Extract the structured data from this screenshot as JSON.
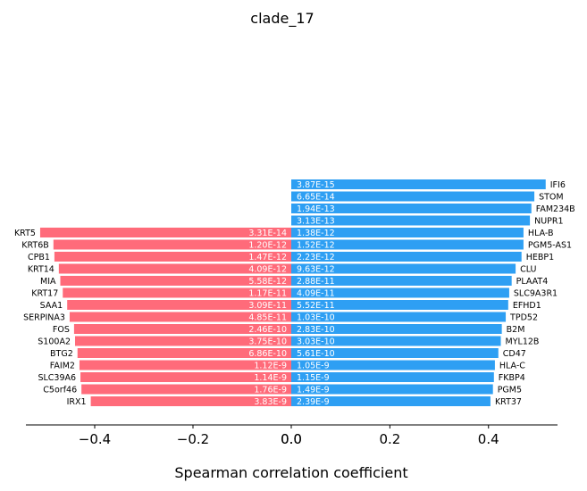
{
  "chart_data": {
    "type": "bar",
    "orientation": "horizontal",
    "title": "clade_17",
    "xlabel": "Spearman correlation coefficient",
    "ylabel": "",
    "grid": false,
    "colors": {
      "negative": "#FF6B7A",
      "positive": "#2E9FF3"
    },
    "panels": [
      {
        "side": "negative",
        "xlim": [
          -0.54,
          0.0
        ],
        "ticks": [
          -0.4,
          -0.2,
          0.0
        ],
        "tick_labels": [
          "−0.4",
          "−0.2",
          "0.0"
        ],
        "bars": [
          {
            "gene": "KRT5",
            "value": -0.511,
            "pvalue": "3.31E-14",
            "row": 4
          },
          {
            "gene": "KRT6B",
            "value": -0.484,
            "pvalue": "1.20E-12",
            "row": 5
          },
          {
            "gene": "CPB1",
            "value": -0.482,
            "pvalue": "1.47E-12",
            "row": 6
          },
          {
            "gene": "KRT14",
            "value": -0.473,
            "pvalue": "4.09E-12",
            "row": 7
          },
          {
            "gene": "MIA",
            "value": -0.47,
            "pvalue": "5.58E-12",
            "row": 8
          },
          {
            "gene": "KRT17",
            "value": -0.465,
            "pvalue": "1.17E-11",
            "row": 9
          },
          {
            "gene": "SAA1",
            "value": -0.456,
            "pvalue": "3.09E-11",
            "row": 10
          },
          {
            "gene": "SERPINA3",
            "value": -0.451,
            "pvalue": "4.85E-11",
            "row": 11
          },
          {
            "gene": "FOS",
            "value": -0.442,
            "pvalue": "2.46E-10",
            "row": 12
          },
          {
            "gene": "S100A2",
            "value": -0.44,
            "pvalue": "3.75E-10",
            "row": 13
          },
          {
            "gene": "BTG2",
            "value": -0.435,
            "pvalue": "6.86E-10",
            "row": 14
          },
          {
            "gene": "FAIM2",
            "value": -0.431,
            "pvalue": "1.12E-9",
            "row": 15
          },
          {
            "gene": "SLC39A6",
            "value": -0.429,
            "pvalue": "1.14E-9",
            "row": 16
          },
          {
            "gene": "C5orf46",
            "value": -0.427,
            "pvalue": "1.76E-9",
            "row": 17
          },
          {
            "gene": "IRX1",
            "value": -0.408,
            "pvalue": "3.83E-9",
            "row": 18
          }
        ]
      },
      {
        "side": "positive",
        "xlim": [
          0.0,
          0.54
        ],
        "ticks": [
          0.0,
          0.2,
          0.4
        ],
        "tick_labels": [
          "0.0",
          "0.2",
          "0.4"
        ],
        "bars": [
          {
            "gene": "IFI6",
            "value": 0.516,
            "pvalue": "3.87E-15",
            "row": 0
          },
          {
            "gene": "STOM",
            "value": 0.493,
            "pvalue": "6.65E-14",
            "row": 1
          },
          {
            "gene": "FAM234B",
            "value": 0.487,
            "pvalue": "1.94E-13",
            "row": 2
          },
          {
            "gene": "NUPR1",
            "value": 0.484,
            "pvalue": "3.13E-13",
            "row": 3
          },
          {
            "gene": "HLA-B",
            "value": 0.471,
            "pvalue": "1.38E-12",
            "row": 4
          },
          {
            "gene": "PGM5-AS1",
            "value": 0.471,
            "pvalue": "1.52E-12",
            "row": 5
          },
          {
            "gene": "HEBP1",
            "value": 0.467,
            "pvalue": "2.23E-12",
            "row": 6
          },
          {
            "gene": "CLU",
            "value": 0.455,
            "pvalue": "9.63E-12",
            "row": 7
          },
          {
            "gene": "PLAAT4",
            "value": 0.447,
            "pvalue": "2.88E-11",
            "row": 8
          },
          {
            "gene": "SLC9A3R1",
            "value": 0.442,
            "pvalue": "4.09E-11",
            "row": 9
          },
          {
            "gene": "EFHD1",
            "value": 0.44,
            "pvalue": "5.52E-11",
            "row": 10
          },
          {
            "gene": "TPD52",
            "value": 0.435,
            "pvalue": "1.03E-10",
            "row": 11
          },
          {
            "gene": "B2M",
            "value": 0.427,
            "pvalue": "2.83E-10",
            "row": 12
          },
          {
            "gene": "MYL12B",
            "value": 0.425,
            "pvalue": "3.03E-10",
            "row": 13
          },
          {
            "gene": "CD47",
            "value": 0.42,
            "pvalue": "5.61E-10",
            "row": 14
          },
          {
            "gene": "HLA-C",
            "value": 0.413,
            "pvalue": "1.05E-9",
            "row": 15
          },
          {
            "gene": "FKBP4",
            "value": 0.411,
            "pvalue": "1.15E-9",
            "row": 16
          },
          {
            "gene": "PGM5",
            "value": 0.409,
            "pvalue": "1.49E-9",
            "row": 17
          },
          {
            "gene": "KRT37",
            "value": 0.404,
            "pvalue": "2.39E-9",
            "row": 18
          }
        ]
      }
    ]
  }
}
